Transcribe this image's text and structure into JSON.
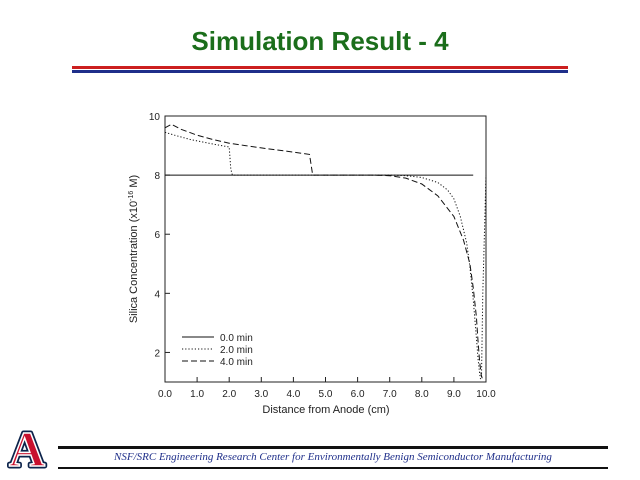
{
  "slide": {
    "title": "Simulation Result - 4",
    "footer": "NSF/SRC Engineering Research Center for Environmentally Benign Semiconductor Manufacturing",
    "logo_letter": "A",
    "colors": {
      "title": "#1b6e1b",
      "rule_red": "#cc1f1f",
      "rule_blue": "#1f2f8a",
      "footer_text": "#1f2f8a",
      "logo_red": "#c8102e",
      "logo_blue": "#0c234b"
    }
  },
  "chart_data": {
    "type": "line",
    "title": "",
    "xlabel": "Distance from Anode (cm)",
    "ylabel": "Silica Concentration (x10",
    "ylabel_exp": "-16",
    "ylabel_unit": " M)",
    "xlim": [
      0,
      10
    ],
    "ylim": [
      1,
      10
    ],
    "x_ticks": [
      0,
      1,
      2,
      3,
      4,
      5,
      6,
      7,
      8,
      9,
      10
    ],
    "x_tick_labels": [
      "0.0",
      "1.0",
      "2.0",
      "3.0",
      "4.0",
      "5.0",
      "6.0",
      "7.0",
      "8.0",
      "9.0",
      "10.0"
    ],
    "y_ticks": [
      2,
      4,
      6,
      8,
      10
    ],
    "y_tick_labels": [
      "2",
      "4",
      "6",
      "8",
      "10"
    ],
    "grid": false,
    "legend_position": "bottom-left",
    "series": [
      {
        "name": "0.0 min",
        "style": "solid",
        "x": [
          0,
          9.6
        ],
        "y": [
          8.0,
          8.0
        ]
      },
      {
        "name": "2.0 min",
        "style": "dotted",
        "x": [
          0,
          0.3,
          0.8,
          1.5,
          2.0,
          2.05,
          2.1,
          6.2,
          7.0,
          7.5,
          8.0,
          8.5,
          8.8,
          9.0,
          9.2,
          9.4,
          9.5,
          9.6,
          9.7,
          9.75,
          9.8,
          9.83,
          9.86,
          9.9,
          10.0
        ],
        "y": [
          9.45,
          9.35,
          9.2,
          9.05,
          8.95,
          8.2,
          8.0,
          8.0,
          8.0,
          7.98,
          7.92,
          7.75,
          7.5,
          7.2,
          6.6,
          5.7,
          4.9,
          3.8,
          2.5,
          1.8,
          1.3,
          1.1,
          1.2,
          4.0,
          8.0
        ]
      },
      {
        "name": "4.0 min",
        "style": "dashed",
        "x": [
          0,
          0.2,
          0.5,
          1.0,
          1.5,
          2.0,
          2.5,
          3.0,
          3.5,
          4.0,
          4.5,
          4.6,
          6.5,
          7.0,
          7.5,
          8.0,
          8.5,
          9.0,
          9.3,
          9.5,
          9.6,
          9.7,
          9.75,
          9.8,
          9.85,
          9.9
        ],
        "y": [
          9.6,
          9.72,
          9.55,
          9.35,
          9.2,
          9.08,
          9.0,
          8.92,
          8.85,
          8.78,
          8.7,
          8.0,
          8.0,
          7.98,
          7.9,
          7.7,
          7.3,
          6.6,
          5.8,
          5.0,
          4.2,
          3.2,
          2.4,
          1.7,
          1.25,
          1.05
        ]
      }
    ]
  }
}
